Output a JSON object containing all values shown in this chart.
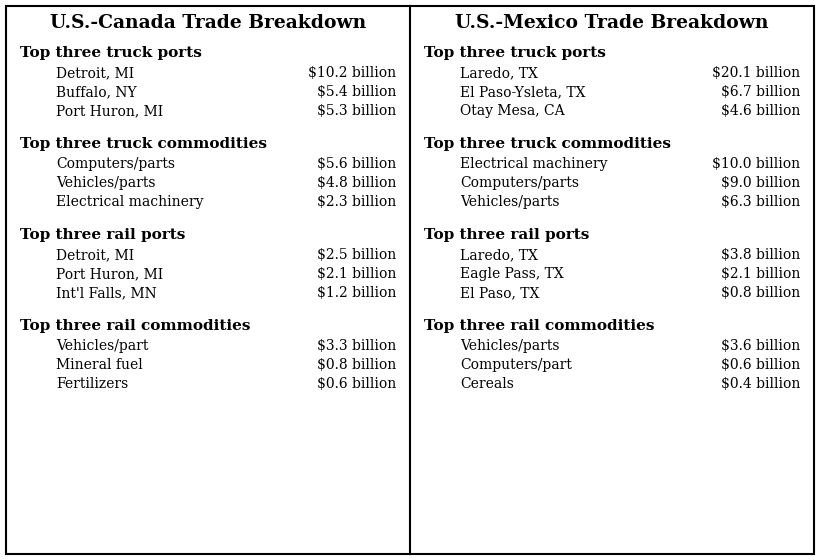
{
  "canada_title": "U.S.-Canada Trade Breakdown",
  "mexico_title": "U.S.-Mexico Trade Breakdown",
  "canada_sections": [
    {
      "header": "Top three truck ports",
      "items": [
        [
          "Detroit, MI",
          "$10.2 billion"
        ],
        [
          "Buffalo, NY",
          "$5.4 billion"
        ],
        [
          "Port Huron, MI",
          "$5.3 billion"
        ]
      ]
    },
    {
      "header": "Top three truck commodities",
      "items": [
        [
          "Computers/parts",
          "$5.6 billion"
        ],
        [
          "Vehicles/parts",
          "$4.8 billion"
        ],
        [
          "Electrical machinery",
          "$2.3 billion"
        ]
      ]
    },
    {
      "header": "Top three rail ports",
      "items": [
        [
          "Detroit, MI",
          "$2.5 billion"
        ],
        [
          "Port Huron, MI",
          "$2.1 billion"
        ],
        [
          "Int'l Falls, MN",
          "$1.2 billion"
        ]
      ]
    },
    {
      "header": "Top three rail commodities",
      "items": [
        [
          "Vehicles/part",
          "$3.3 billion"
        ],
        [
          "Mineral fuel",
          "$0.8 billion"
        ],
        [
          "Fertilizers",
          "$0.6 billion"
        ]
      ]
    }
  ],
  "mexico_sections": [
    {
      "header": "Top three truck ports",
      "items": [
        [
          "Laredo, TX",
          "$20.1 billion"
        ],
        [
          "El Paso-Ysleta, TX",
          "$6.7 billion"
        ],
        [
          "Otay Mesa, CA",
          "$4.6 billion"
        ]
      ]
    },
    {
      "header": "Top three truck commodities",
      "items": [
        [
          "Electrical machinery",
          "$10.0 billion"
        ],
        [
          "Computers/parts",
          "$9.0 billion"
        ],
        [
          "Vehicles/parts",
          "$6.3 billion"
        ]
      ]
    },
    {
      "header": "Top three rail ports",
      "items": [
        [
          "Laredo, TX",
          "$3.8 billion"
        ],
        [
          "Eagle Pass, TX",
          "$2.1 billion"
        ],
        [
          "El Paso, TX",
          "$0.8 billion"
        ]
      ]
    },
    {
      "header": "Top three rail commodities",
      "items": [
        [
          "Vehicles/parts",
          "$3.6 billion"
        ],
        [
          "Computers/part",
          "$0.6 billion"
        ],
        [
          "Cereals",
          "$0.4 billion"
        ]
      ]
    }
  ],
  "bg_color": "#ffffff",
  "border_color": "#000000",
  "title_fontsize": 13.5,
  "header_fontsize": 11,
  "item_fontsize": 10,
  "fig_width": 8.2,
  "fig_height": 5.6,
  "dpi": 100
}
